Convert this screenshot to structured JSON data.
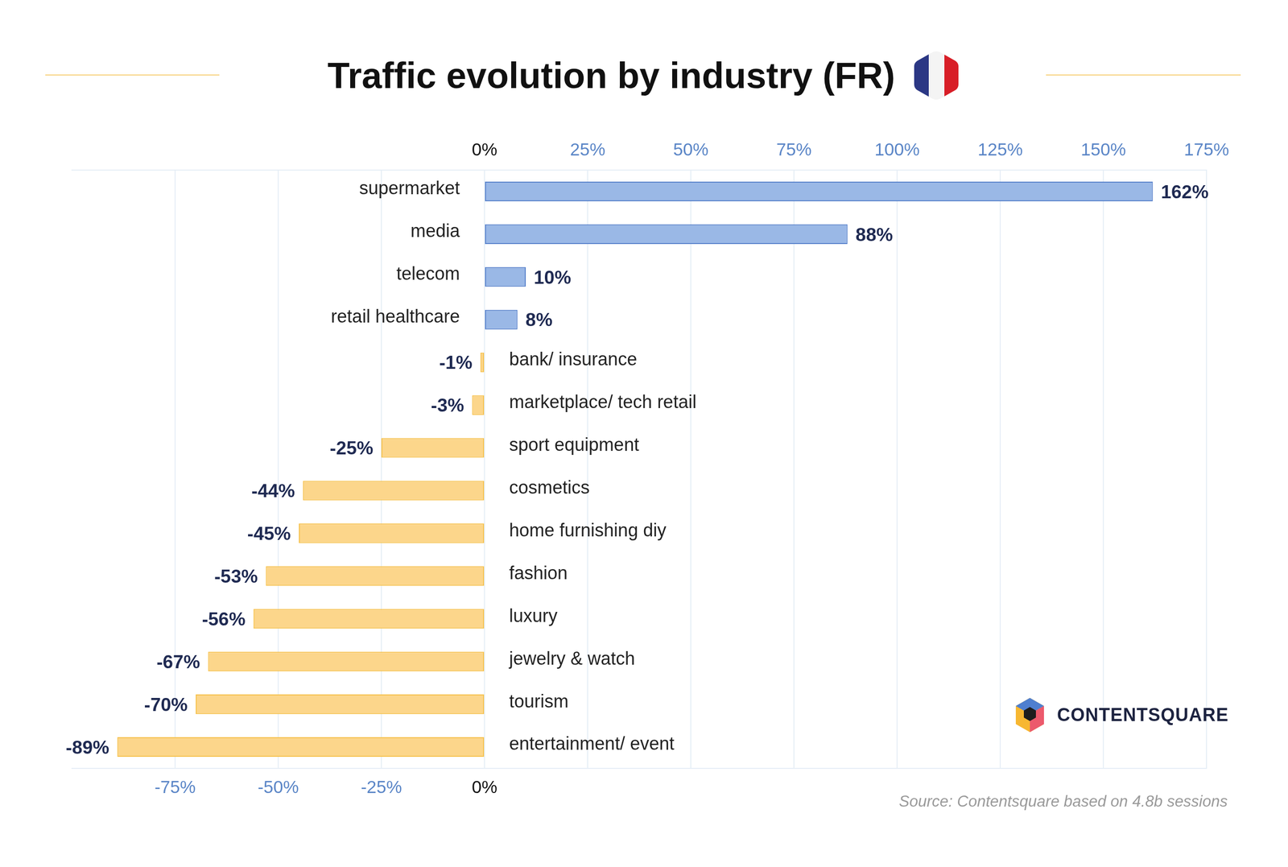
{
  "chart_data": {
    "type": "bar",
    "orientation": "horizontal",
    "title": "Traffic evolution by industry (FR)",
    "categories": [
      "supermarket",
      "media",
      "telecom",
      "retail healthcare",
      "bank/ insurance",
      "marketplace/ tech retail",
      "sport equipment",
      "cosmetics",
      "home furnishing diy",
      "fashion",
      "luxury",
      "jewelry & watch",
      "tourism",
      "entertainment/ event"
    ],
    "values": [
      162,
      88,
      10,
      8,
      -1,
      -3,
      -25,
      -44,
      -45,
      -53,
      -56,
      -67,
      -70,
      -89
    ],
    "value_labels": [
      "162%",
      "88%",
      "10%",
      "8%",
      "-1%",
      "-3%",
      "-25%",
      "-44%",
      "-45%",
      "-53%",
      "-56%",
      "-67%",
      "-70%",
      "-89%"
    ],
    "colors": [
      "#9ab8e6",
      "#9ab8e6",
      "#9ab8e6",
      "#9ab8e6",
      "#fcd68b",
      "#fcd68b",
      "#fcd68b",
      "#fcd68b",
      "#fcd68b",
      "#fcd68b",
      "#fcd68b",
      "#fcd68b",
      "#fcd68b",
      "#fcd68b"
    ],
    "xlim": [
      -100,
      175
    ],
    "xticks": [
      {
        "value": -75,
        "label": "-75%"
      },
      {
        "value": -50,
        "label": "-50%"
      },
      {
        "value": -25,
        "label": "-25%"
      },
      {
        "value": 0,
        "label": "0%"
      },
      {
        "value": 25,
        "label": "25%"
      },
      {
        "value": 50,
        "label": "50%"
      },
      {
        "value": 75,
        "label": "75%"
      },
      {
        "value": 100,
        "label": "100%"
      },
      {
        "value": 125,
        "label": "125%"
      },
      {
        "value": 150,
        "label": "150%"
      },
      {
        "value": 175,
        "label": "175%"
      }
    ],
    "grid": true,
    "data_labels": true,
    "source": "Source: Contentsquare based on 4.8b sessions",
    "brand": "CONTENTSQUARE"
  }
}
